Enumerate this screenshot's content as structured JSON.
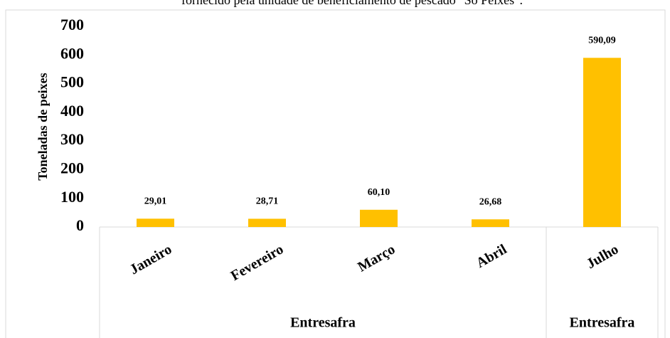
{
  "chart_data": {
    "type": "bar",
    "title": "fornecido pela unidade de beneficiamento de pescado \"Só Peixes\".",
    "y_label": "Toneladas de peixes",
    "categories": [
      "Janeiro",
      "Fevereiro",
      "Março",
      "Abril",
      "Julho"
    ],
    "values": [
      29.01,
      28.71,
      60.1,
      26.68,
      590.09
    ],
    "value_labels": [
      "29,01",
      "28,71",
      "60,10",
      "26,68",
      "590,09"
    ],
    "groups": [
      "Entresafra",
      "Entresafra"
    ],
    "color": "#ffc000",
    "ylim": [
      0,
      700
    ],
    "yticks": [
      0,
      100,
      200,
      300,
      400,
      500,
      600,
      700
    ],
    "grid": false
  }
}
